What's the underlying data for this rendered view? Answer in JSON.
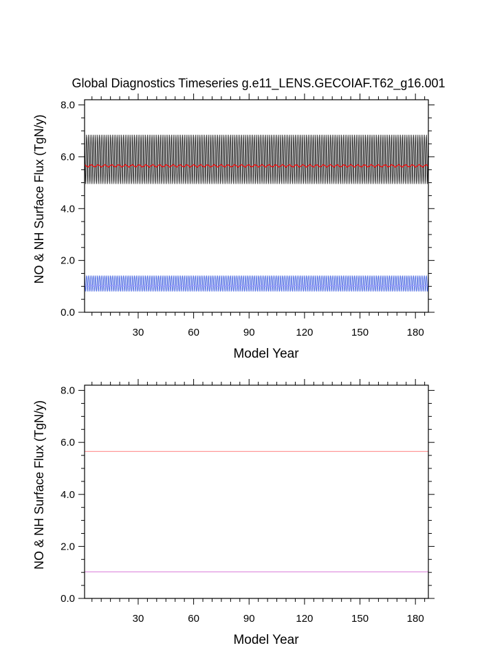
{
  "figure": {
    "title": "Global Diagnostics Timeseries g.e11_LENS.GECOIAF.T62_g16.001"
  },
  "chart_data": [
    {
      "type": "line",
      "xlabel": "Model Year",
      "ylabel": "NO & NH Surface Flux (TgN/y)",
      "xlim": [
        1,
        187
      ],
      "ylim": [
        0,
        8.2
      ],
      "xticks": [
        30,
        60,
        90,
        120,
        150,
        180
      ],
      "yticks": [
        0.0,
        2.0,
        4.0,
        6.0,
        8.0
      ],
      "ytick_labels": [
        "0.0",
        "2.0",
        "4.0",
        "6.0",
        "8.0"
      ],
      "grid": false,
      "series": [
        {
          "color": "#000000",
          "style": "monthly-seasonal",
          "mean": 5.6,
          "min": 4.95,
          "max": 6.85
        },
        {
          "color": "#ff0000",
          "style": "annual-mean",
          "mean": 5.65,
          "min": 5.6,
          "max": 5.7
        },
        {
          "color": "#3355dd",
          "style": "monthly-seasonal",
          "mean": 1.0,
          "min": 0.8,
          "max": 1.42
        },
        {
          "color": "#9999ff",
          "style": "annual-mean",
          "mean": 1.02,
          "min": 1.0,
          "max": 1.04
        }
      ]
    },
    {
      "type": "line",
      "xlabel": "Model Year",
      "ylabel": "NO & NH Surface Flux (TgN/y)",
      "xlim": [
        1,
        187
      ],
      "ylim": [
        0,
        8.2
      ],
      "xticks": [
        30,
        60,
        90,
        120,
        150,
        180
      ],
      "yticks": [
        0.0,
        2.0,
        4.0,
        6.0,
        8.0
      ],
      "ytick_labels": [
        "0.0",
        "2.0",
        "4.0",
        "6.0",
        "8.0"
      ],
      "grid": false,
      "series": [
        {
          "color": "#ff9999",
          "values_constant": 5.65
        },
        {
          "color": "#dd88dd",
          "values_constant": 1.02
        }
      ]
    }
  ]
}
